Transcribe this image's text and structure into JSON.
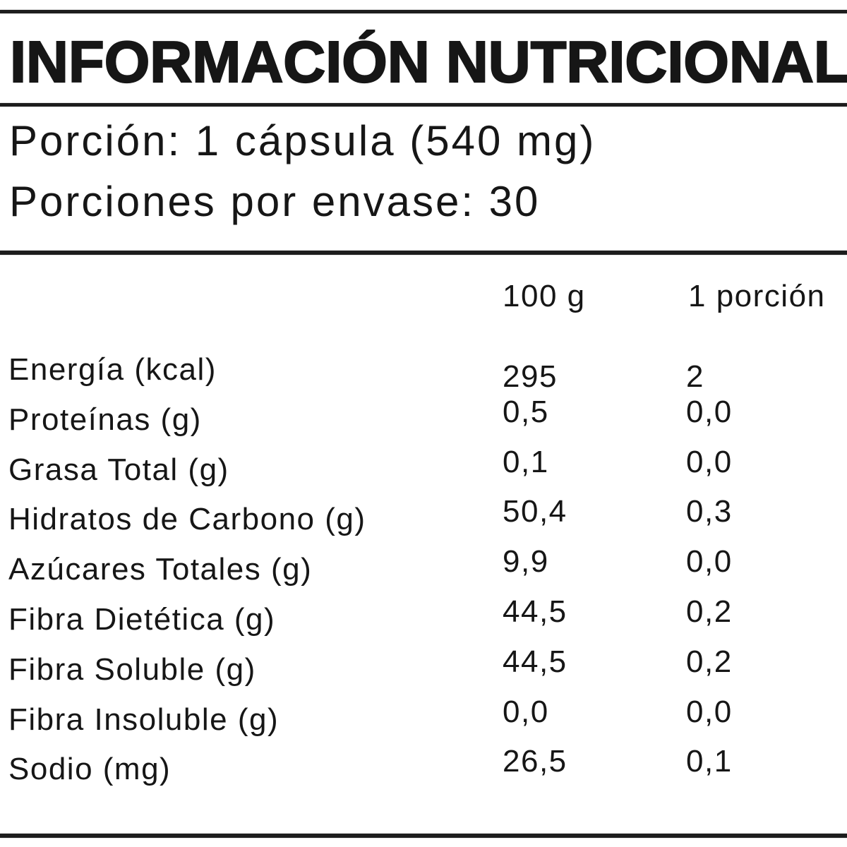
{
  "title": "INFORMACIÓN NUTRICIONAL",
  "serving": {
    "line1": "Porción: 1 cápsula (540 mg)",
    "line2": "Porciones por envase: 30"
  },
  "table": {
    "columns": [
      "100 g",
      "1 porción"
    ],
    "rows": [
      {
        "name": "Energía (kcal)",
        "per100": "295",
        "per_serving": "2"
      },
      {
        "name": "Proteínas (g)",
        "per100": "0,5",
        "per_serving": "0,0"
      },
      {
        "name": "Grasa Total (g)",
        "per100": "0,1",
        "per_serving": "0,0"
      },
      {
        "name": "Hidratos de Carbono (g)",
        "per100": "50,4",
        "per_serving": "0,3"
      },
      {
        "name": "Azúcares Totales (g)",
        "per100": "9,9",
        "per_serving": "0,0"
      },
      {
        "name": "Fibra Dietética (g)",
        "per100": "44,5",
        "per_serving": "0,2"
      },
      {
        "name": "Fibra Soluble (g)",
        "per100": "44,5",
        "per_serving": "0,2"
      },
      {
        "name": "Fibra Insoluble (g)",
        "per100": "0,0",
        "per_serving": "0,0"
      },
      {
        "name": "Sodio (mg)",
        "per100": "26,5",
        "per_serving": "0,1"
      }
    ]
  },
  "colors": {
    "text": "#161616",
    "rule": "#1d1d1d",
    "background": "#ffffff"
  }
}
